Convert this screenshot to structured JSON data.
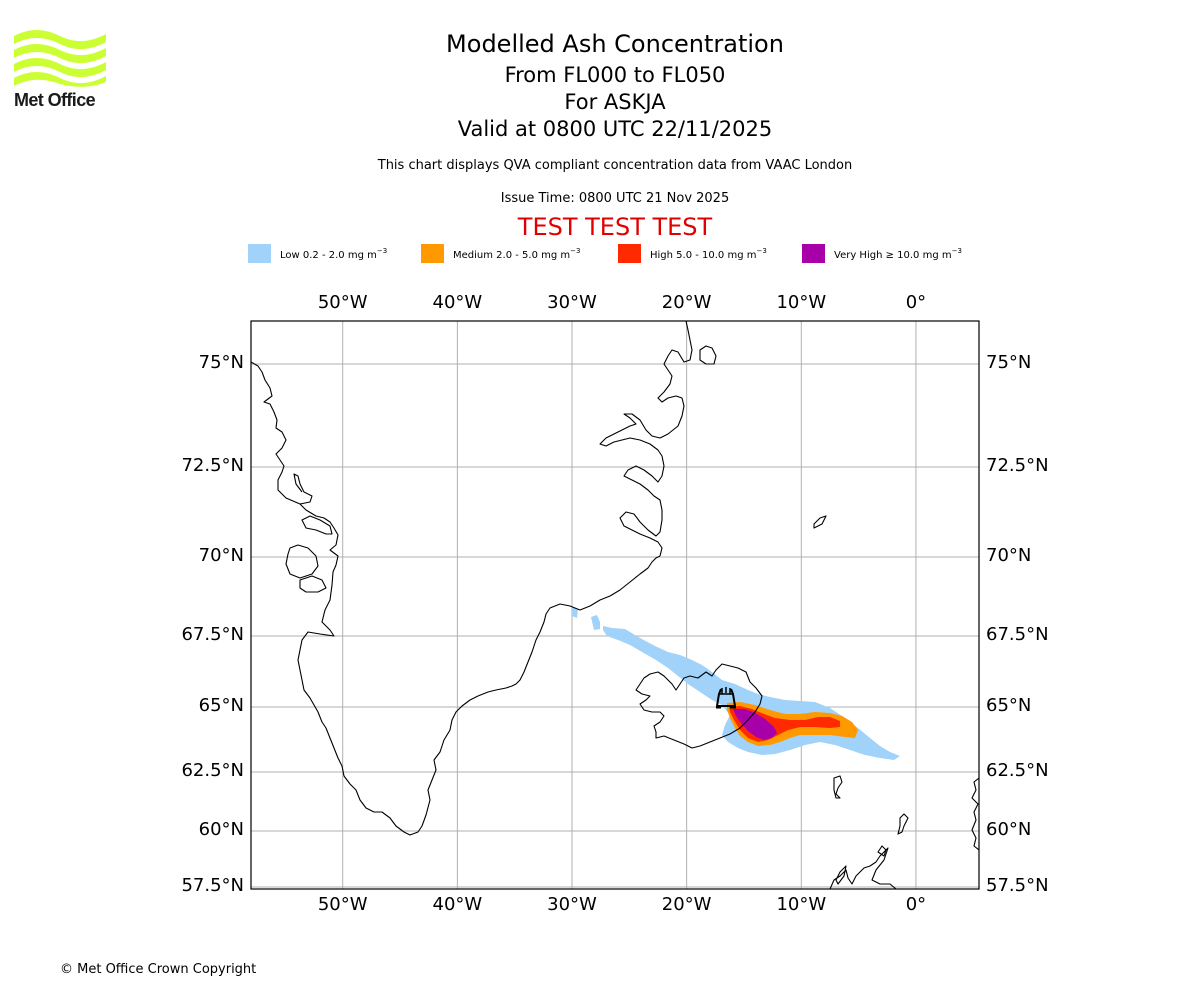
{
  "header": {
    "logo_text": "Met Office",
    "title": "Modelled Ash Concentration",
    "subtitle_levels": "From FL000 to FL050",
    "subtitle_volcano": "For ASKJA",
    "subtitle_valid": "Valid at 0800 UTC 22/11/2025",
    "description": "This chart displays QVA compliant concentration data from VAAC London",
    "issue_time": "Issue Time: 0800 UTC 21 Nov 2025",
    "test_banner": "TEST TEST TEST"
  },
  "colors": {
    "low": "#a0d2fa",
    "medium": "#ff9900",
    "high": "#ff2a00",
    "very_high": "#a800a8",
    "test_banner": "#e00000",
    "gridline": "#b0b0b0",
    "coastline": "#000000",
    "logo": "#ccff33"
  },
  "legend": {
    "items": [
      {
        "key": "low",
        "label": "Low 0.2 - 2.0 mg m",
        "unit_exp": "−3"
      },
      {
        "key": "medium",
        "label": "Medium 2.0 - 5.0 mg m",
        "unit_exp": "−3"
      },
      {
        "key": "high",
        "label": "High 5.0 - 10.0 mg m",
        "unit_exp": "−3"
      },
      {
        "key": "very_high",
        "label": "Very High  ≥  10.0 mg m",
        "unit_exp": "−3"
      }
    ]
  },
  "map": {
    "lon_range": [
      -58,
      5.5
    ],
    "lat_range": [
      57.4,
      76.6
    ],
    "lon_ticks": [
      {
        "value": -50,
        "label": "50°W"
      },
      {
        "value": -40,
        "label": "40°W"
      },
      {
        "value": -30,
        "label": "30°W"
      },
      {
        "value": -20,
        "label": "20°W"
      },
      {
        "value": -10,
        "label": "10°W"
      },
      {
        "value": 0,
        "label": "0°"
      }
    ],
    "lat_ticks": [
      {
        "value": 75,
        "label": "75°N"
      },
      {
        "value": 72.5,
        "label": "72.5°N"
      },
      {
        "value": 70,
        "label": "70°N"
      },
      {
        "value": 67.5,
        "label": "67.5°N"
      },
      {
        "value": 65,
        "label": "65°N"
      },
      {
        "value": 62.5,
        "label": "62.5°N"
      },
      {
        "value": 60,
        "label": "60°N"
      },
      {
        "value": 57.5,
        "label": "57.5°N"
      }
    ],
    "volcano": {
      "name": "ASKJA",
      "symbol": "volcano-icon",
      "lon": -16.75,
      "lat": 65.03
    }
  },
  "footer": {
    "copyright": "© Met Office Crown Copyright"
  }
}
